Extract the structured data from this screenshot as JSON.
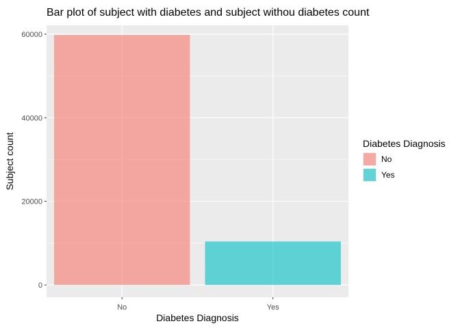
{
  "chart_data": {
    "type": "bar",
    "title": "Bar plot of subject with diabetes and subject withou diabetes count",
    "xlabel": "Diabetes Diagnosis",
    "ylabel": "Subject count",
    "categories": [
      "No",
      "Yes"
    ],
    "values": [
      59800,
      10400
    ],
    "ylim": [
      0,
      62000
    ],
    "yticks": [
      0,
      20000,
      40000,
      60000
    ],
    "ytick_labels": [
      "0",
      "20000",
      "40000",
      "60000"
    ],
    "grid": true,
    "legend": {
      "title": "Diabetes Diagnosis",
      "placement": "right",
      "items": [
        {
          "label": "No",
          "color": "#F8766D"
        },
        {
          "label": "Yes",
          "color": "#00BFC4"
        }
      ]
    },
    "colors": {
      "panel_background": "#EBEBEB",
      "grid_major": "#FFFFFF",
      "bar_opacity": 0.6
    }
  }
}
